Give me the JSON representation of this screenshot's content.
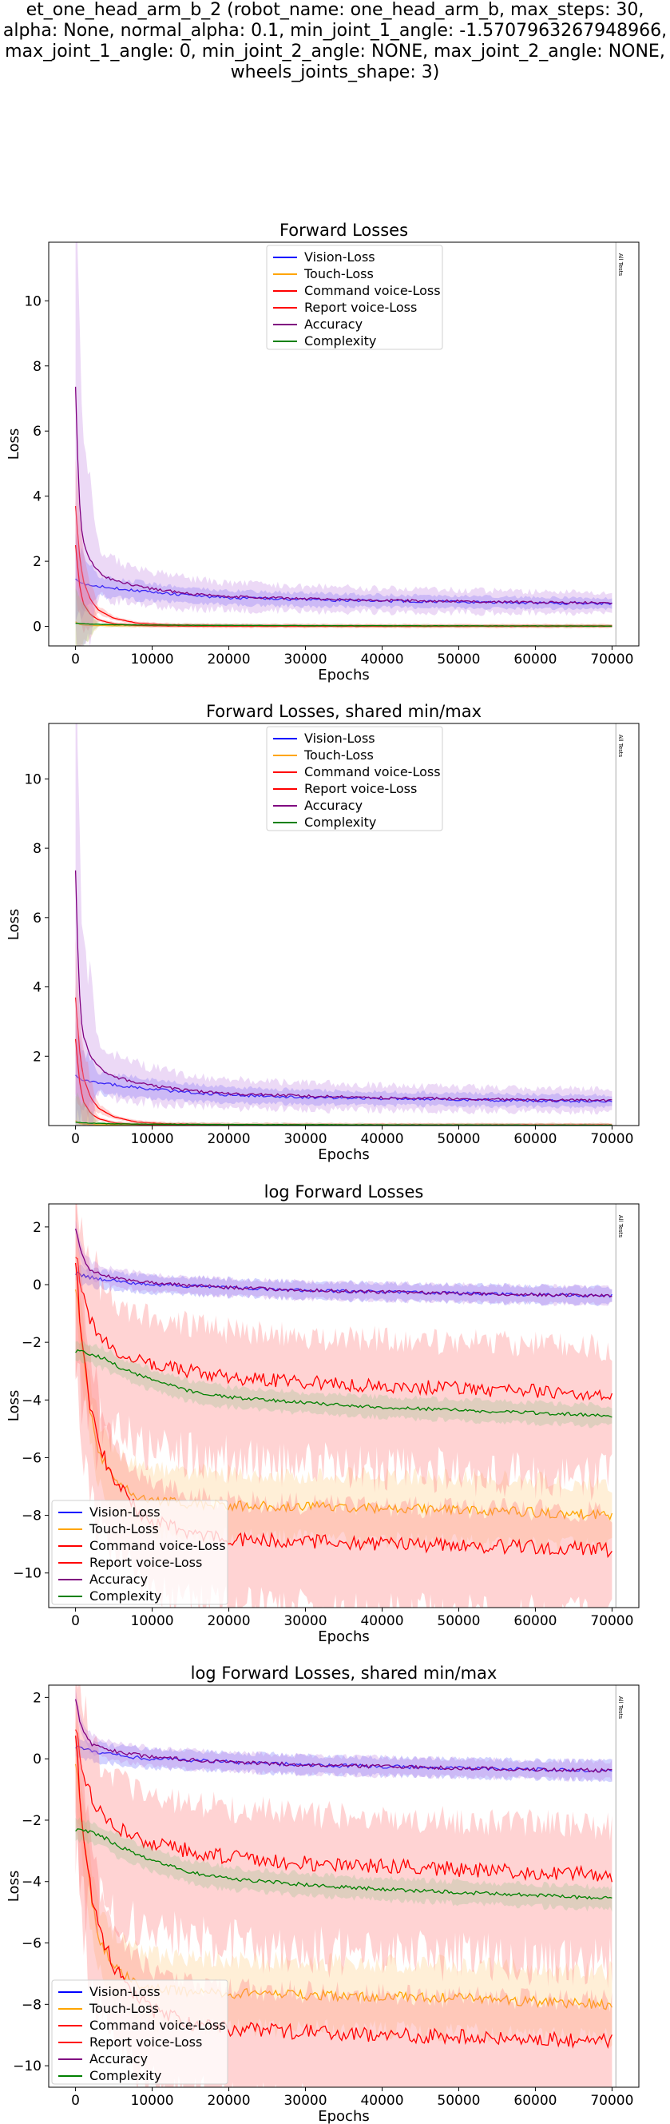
{
  "suptitle": [
    "et_one_head_arm_b_2 (robot_name: one_head_arm_b, max_steps: 30,",
    "alpha: None, normal_alpha: 0.1, min_joint_1_angle: -1.5707963267948966,",
    "max_joint_1_angle: 0, min_joint_2_angle: NONE, max_joint_2_angle: NONE,",
    "wheels_joints_shape: 3)"
  ],
  "colors": {
    "vision": "#0000ff",
    "touch": "#ffa500",
    "command": "#ff0000",
    "report": "#ff0000",
    "accuracy": "#800080",
    "complexity": "#008000",
    "accent": "#7f7fff"
  },
  "chart_data": [
    {
      "type": "line",
      "title": "Forward Losses",
      "xlabel": "Epochs",
      "ylabel": "Loss",
      "xlim": [
        -3500,
        73500
      ],
      "ylim": [
        -0.6,
        11.8
      ],
      "xticks": [
        0,
        10000,
        20000,
        30000,
        40000,
        50000,
        60000,
        70000
      ],
      "xtick_labels": [
        "0",
        "10000",
        "20000",
        "30000",
        "40000",
        "50000",
        "60000",
        "70000"
      ],
      "yticks": [
        0,
        2,
        4,
        6,
        8,
        10
      ],
      "ytick_labels": [
        "0",
        "2",
        "4",
        "6",
        "8",
        "10"
      ],
      "legend_position": "top-center",
      "annotation": "All Tests",
      "annotation_x": 70500,
      "series": [
        {
          "name": "Vision-Loss",
          "x": [
            0,
            500,
            1000,
            2000,
            4000,
            6000,
            10000,
            15000,
            20000,
            30000,
            40000,
            50000,
            60000,
            70000
          ],
          "y": [
            1.5,
            1.35,
            1.3,
            1.28,
            1.2,
            1.15,
            1.05,
            0.95,
            0.88,
            0.82,
            0.78,
            0.75,
            0.72,
            0.7
          ]
        },
        {
          "name": "Touch-Loss",
          "x": [
            0,
            500,
            1000,
            2000,
            5000,
            10000,
            20000,
            40000,
            70000
          ],
          "y": [
            0.15,
            0.06,
            0.04,
            0.03,
            0.02,
            0.02,
            0.01,
            0.01,
            0.01
          ]
        },
        {
          "name": "Command voice-Loss",
          "x": [
            0,
            500,
            1000,
            2000,
            3000,
            5000,
            8000,
            12000,
            20000,
            40000,
            70000
          ],
          "y": [
            3.7,
            2.2,
            1.4,
            0.8,
            0.5,
            0.25,
            0.1,
            0.05,
            0.03,
            0.02,
            0.02
          ]
        },
        {
          "name": "Report voice-Loss",
          "x": [
            0,
            500,
            1000,
            2000,
            3000,
            5000,
            8000,
            12000,
            20000,
            40000,
            70000
          ],
          "y": [
            2.5,
            1.3,
            0.7,
            0.35,
            0.2,
            0.08,
            0.03,
            0.01,
            0.005,
            0.003,
            0.002
          ]
        },
        {
          "name": "Accuracy",
          "x": [
            0,
            300,
            600,
            1000,
            2000,
            3000,
            4000,
            6000,
            10000,
            15000,
            20000,
            30000,
            40000,
            50000,
            60000,
            70000
          ],
          "y": [
            7.4,
            5.0,
            3.4,
            2.6,
            2.0,
            1.7,
            1.5,
            1.35,
            1.15,
            1.0,
            0.92,
            0.85,
            0.8,
            0.77,
            0.74,
            0.72
          ]
        },
        {
          "name": "Complexity",
          "x": [
            0,
            500,
            1000,
            2000,
            5000,
            10000,
            20000,
            40000,
            70000
          ],
          "y": [
            0.1,
            0.09,
            0.08,
            0.07,
            0.05,
            0.04,
            0.03,
            0.02,
            0.01
          ]
        }
      ]
    },
    {
      "type": "line",
      "title": "Forward Losses, shared min/max",
      "xlabel": "Epochs",
      "ylabel": "Loss",
      "xlim": [
        -3500,
        73500
      ],
      "ylim": [
        0.0,
        11.6
      ],
      "xticks": [
        0,
        10000,
        20000,
        30000,
        40000,
        50000,
        60000,
        70000
      ],
      "xtick_labels": [
        "0",
        "10000",
        "20000",
        "30000",
        "40000",
        "50000",
        "60000",
        "70000"
      ],
      "yticks": [
        2,
        4,
        6,
        8,
        10
      ],
      "ytick_labels": [
        "2",
        "4",
        "6",
        "8",
        "10"
      ],
      "legend_position": "top-center",
      "annotation": "All Tests",
      "annotation_x": 70500,
      "series": [
        {
          "name": "Vision-Loss",
          "x": [
            0,
            500,
            1000,
            2000,
            4000,
            6000,
            10000,
            15000,
            20000,
            30000,
            40000,
            50000,
            60000,
            70000
          ],
          "y": [
            1.5,
            1.35,
            1.3,
            1.28,
            1.2,
            1.15,
            1.05,
            0.95,
            0.88,
            0.82,
            0.78,
            0.75,
            0.72,
            0.7
          ]
        },
        {
          "name": "Touch-Loss",
          "x": [
            0,
            500,
            1000,
            2000,
            5000,
            10000,
            20000,
            40000,
            70000
          ],
          "y": [
            0.15,
            0.06,
            0.04,
            0.03,
            0.02,
            0.02,
            0.01,
            0.01,
            0.01
          ]
        },
        {
          "name": "Command voice-Loss",
          "x": [
            0,
            500,
            1000,
            2000,
            3000,
            5000,
            8000,
            12000,
            20000,
            40000,
            70000
          ],
          "y": [
            3.7,
            2.2,
            1.4,
            0.8,
            0.5,
            0.25,
            0.1,
            0.05,
            0.03,
            0.02,
            0.02
          ]
        },
        {
          "name": "Report voice-Loss",
          "x": [
            0,
            500,
            1000,
            2000,
            3000,
            5000,
            8000,
            12000,
            20000,
            40000,
            70000
          ],
          "y": [
            2.5,
            1.3,
            0.7,
            0.35,
            0.2,
            0.08,
            0.03,
            0.01,
            0.005,
            0.003,
            0.002
          ]
        },
        {
          "name": "Accuracy",
          "x": [
            0,
            300,
            600,
            1000,
            2000,
            3000,
            4000,
            6000,
            10000,
            15000,
            20000,
            30000,
            40000,
            50000,
            60000,
            70000
          ],
          "y": [
            7.4,
            5.0,
            3.4,
            2.6,
            2.0,
            1.7,
            1.5,
            1.35,
            1.15,
            1.0,
            0.92,
            0.85,
            0.8,
            0.77,
            0.74,
            0.72
          ]
        },
        {
          "name": "Complexity",
          "x": [
            0,
            500,
            1000,
            2000,
            5000,
            10000,
            20000,
            40000,
            70000
          ],
          "y": [
            0.1,
            0.09,
            0.08,
            0.07,
            0.05,
            0.04,
            0.03,
            0.02,
            0.01
          ]
        }
      ]
    },
    {
      "type": "line",
      "title": "log Forward Losses",
      "xlabel": "Epochs",
      "ylabel": "Loss",
      "xlim": [
        -3500,
        73500
      ],
      "ylim": [
        -11.2,
        2.8
      ],
      "xticks": [
        0,
        10000,
        20000,
        30000,
        40000,
        50000,
        60000,
        70000
      ],
      "xtick_labels": [
        "0",
        "10000",
        "20000",
        "30000",
        "40000",
        "50000",
        "60000",
        "70000"
      ],
      "yticks": [
        -10,
        -8,
        -6,
        -4,
        -2,
        0,
        2
      ],
      "ytick_labels": [
        "−10",
        "−8",
        "−6",
        "−4",
        "−2",
        "0",
        "2"
      ],
      "legend_position": "bottom-left",
      "annotation": "All Tests",
      "annotation_x": 70500,
      "series": [
        {
          "name": "Vision-Loss",
          "x": [
            0,
            1000,
            3000,
            6000,
            10000,
            20000,
            30000,
            40000,
            50000,
            60000,
            70000
          ],
          "y": [
            0.4,
            0.3,
            0.2,
            0.1,
            0.0,
            -0.1,
            -0.2,
            -0.25,
            -0.3,
            -0.35,
            -0.38
          ]
        },
        {
          "name": "Touch-Loss",
          "x": [
            0,
            1000,
            2000,
            3000,
            5000,
            8000,
            10000,
            15000,
            20000,
            30000,
            40000,
            50000,
            60000,
            70000
          ],
          "y": [
            0.0,
            -2.5,
            -4.5,
            -5.8,
            -6.8,
            -7.3,
            -7.5,
            -7.6,
            -7.65,
            -7.7,
            -7.75,
            -7.8,
            -7.9,
            -8.0
          ]
        },
        {
          "name": "Command voice-Loss",
          "x": [
            0,
            500,
            1000,
            2000,
            3000,
            5000,
            8000,
            10000,
            15000,
            20000,
            30000,
            40000,
            50000,
            60000,
            70000
          ],
          "y": [
            1.2,
            0.2,
            -0.5,
            -1.2,
            -1.7,
            -2.2,
            -2.6,
            -2.8,
            -3.0,
            -3.2,
            -3.4,
            -3.5,
            -3.6,
            -3.7,
            -3.8
          ]
        },
        {
          "name": "Report voice-Loss",
          "x": [
            0,
            500,
            1000,
            2000,
            3000,
            5000,
            8000,
            10000,
            15000,
            20000,
            30000,
            40000,
            50000,
            60000,
            70000
          ],
          "y": [
            1.0,
            -1.0,
            -2.5,
            -4.3,
            -5.5,
            -6.8,
            -7.8,
            -8.2,
            -8.6,
            -8.8,
            -8.9,
            -9.0,
            -9.05,
            -9.1,
            -9.2
          ]
        },
        {
          "name": "Accuracy",
          "x": [
            0,
            500,
            1000,
            2000,
            4000,
            6000,
            10000,
            20000,
            30000,
            40000,
            50000,
            60000,
            70000
          ],
          "y": [
            2.0,
            1.3,
            0.9,
            0.5,
            0.3,
            0.2,
            0.05,
            -0.1,
            -0.2,
            -0.25,
            -0.3,
            -0.35,
            -0.38
          ]
        },
        {
          "name": "Complexity",
          "x": [
            0,
            2000,
            4000,
            6000,
            10000,
            15000,
            20000,
            30000,
            40000,
            50000,
            60000,
            70000
          ],
          "y": [
            -2.3,
            -2.4,
            -2.6,
            -2.9,
            -3.3,
            -3.7,
            -3.9,
            -4.1,
            -4.25,
            -4.35,
            -4.45,
            -4.55
          ]
        }
      ]
    },
    {
      "type": "line",
      "title": "log Forward Losses, shared min/max",
      "xlabel": "Epochs",
      "ylabel": "Loss",
      "xlim": [
        -3500,
        73500
      ],
      "ylim": [
        -10.7,
        2.4
      ],
      "xticks": [
        0,
        10000,
        20000,
        30000,
        40000,
        50000,
        60000,
        70000
      ],
      "xtick_labels": [
        "0",
        "10000",
        "20000",
        "30000",
        "40000",
        "50000",
        "60000",
        "70000"
      ],
      "yticks": [
        -10,
        -8,
        -6,
        -4,
        -2,
        0,
        2
      ],
      "ytick_labels": [
        "−10",
        "−8",
        "−6",
        "−4",
        "−2",
        "0",
        "2"
      ],
      "legend_position": "bottom-left",
      "annotation": "All Tests",
      "annotation_x": 70500,
      "series": [
        {
          "name": "Vision-Loss",
          "x": [
            0,
            1000,
            3000,
            6000,
            10000,
            20000,
            30000,
            40000,
            50000,
            60000,
            70000
          ],
          "y": [
            0.4,
            0.3,
            0.2,
            0.1,
            0.0,
            -0.1,
            -0.2,
            -0.25,
            -0.3,
            -0.35,
            -0.38
          ]
        },
        {
          "name": "Touch-Loss",
          "x": [
            0,
            1000,
            2000,
            3000,
            5000,
            8000,
            10000,
            15000,
            20000,
            30000,
            40000,
            50000,
            60000,
            70000
          ],
          "y": [
            0.0,
            -2.5,
            -4.5,
            -5.8,
            -6.8,
            -7.3,
            -7.5,
            -7.6,
            -7.65,
            -7.7,
            -7.75,
            -7.8,
            -7.9,
            -8.0
          ]
        },
        {
          "name": "Command voice-Loss",
          "x": [
            0,
            500,
            1000,
            2000,
            3000,
            5000,
            8000,
            10000,
            15000,
            20000,
            30000,
            40000,
            50000,
            60000,
            70000
          ],
          "y": [
            1.2,
            0.2,
            -0.5,
            -1.2,
            -1.7,
            -2.2,
            -2.6,
            -2.8,
            -3.0,
            -3.2,
            -3.4,
            -3.5,
            -3.6,
            -3.7,
            -3.8
          ]
        },
        {
          "name": "Report voice-Loss",
          "x": [
            0,
            500,
            1000,
            2000,
            3000,
            5000,
            8000,
            10000,
            15000,
            20000,
            30000,
            40000,
            50000,
            60000,
            70000
          ],
          "y": [
            1.0,
            -1.0,
            -2.5,
            -4.3,
            -5.5,
            -6.8,
            -7.8,
            -8.2,
            -8.6,
            -8.8,
            -8.9,
            -9.0,
            -9.05,
            -9.1,
            -9.2
          ]
        },
        {
          "name": "Accuracy",
          "x": [
            0,
            500,
            1000,
            2000,
            4000,
            6000,
            10000,
            20000,
            30000,
            40000,
            50000,
            60000,
            70000
          ],
          "y": [
            2.0,
            1.3,
            0.9,
            0.5,
            0.3,
            0.2,
            0.05,
            -0.1,
            -0.2,
            -0.25,
            -0.3,
            -0.35,
            -0.38
          ]
        },
        {
          "name": "Complexity",
          "x": [
            0,
            2000,
            4000,
            6000,
            10000,
            15000,
            20000,
            30000,
            40000,
            50000,
            60000,
            70000
          ],
          "y": [
            -2.3,
            -2.4,
            -2.6,
            -2.9,
            -3.3,
            -3.7,
            -3.9,
            -4.1,
            -4.25,
            -4.35,
            -4.45,
            -4.55
          ]
        }
      ]
    }
  ]
}
